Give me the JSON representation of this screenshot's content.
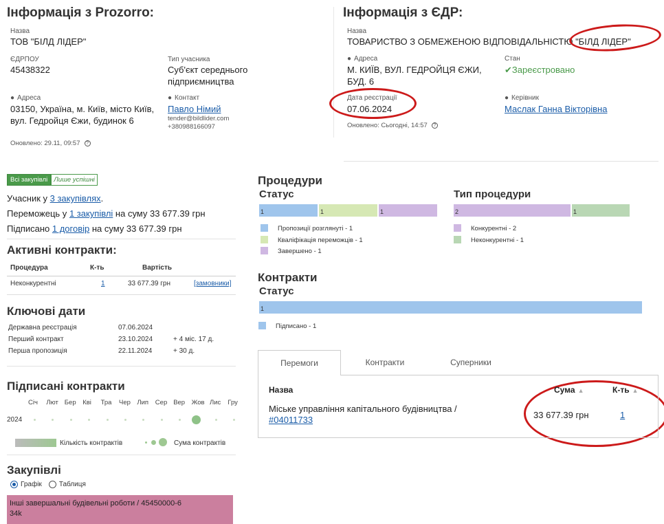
{
  "prozorro": {
    "title": "Інформація з Prozorro:",
    "name_label": "Назва",
    "name": "ТОВ \"БІЛД ЛІДЕР\"",
    "edrpou_label": "ЄДРПОУ",
    "edrpou": "45438322",
    "type_label": "Тип учасника",
    "type_line1": "Суб'єкт середнього",
    "type_line2": "підприємництва",
    "address_label": "Адреса",
    "address_line1": "03150, Україна, м. Київ, місто Київ,",
    "address_line2": "вул. Гедройця Єжи, будинок 6",
    "contact_label": "Контакт",
    "contact_name": "Павло Німий",
    "contact_email": "tender@bildlider.com",
    "contact_phone": "+380988166097",
    "updated": "Оновлено: 29.11, 09:57"
  },
  "edr": {
    "title": "Інформація з ЄДР:",
    "name_label": "Назва",
    "name": "ТОВАРИСТВО З ОБМЕЖЕНОЮ ВІДПОВІДАЛЬНІСТЮ \"БІЛД ЛІДЕР\"",
    "address_label": "Адреса",
    "address_line1": "М. КИЇВ, ВУЛ. ГЕДРОЙЦЯ ЄЖИ,",
    "address_line2": "БУД. 6",
    "state_label": "Стан",
    "state": "Зареєстровано",
    "reg_date_label": "Дата реєстрації",
    "reg_date": "07.06.2024",
    "head_label": "Керівник",
    "head": "Маслак Ганна Вікторівна",
    "updated": "Оновлено: Сьогодні, 14:57"
  },
  "filter": {
    "all": "Всі закупівлі",
    "successful": "Лише успішні"
  },
  "summary": {
    "participant_prefix": "Учасник у ",
    "participant_link": "3 закупівлях",
    "participant_suffix": ".",
    "winner_prefix": "Переможець у ",
    "winner_link": "1 закупівлі",
    "winner_suffix": " на суму 33 677.39 грн",
    "signed_prefix": "Підписано ",
    "signed_link": "1 договір",
    "signed_suffix": " на суму 33 677.39 грн"
  },
  "active_contracts": {
    "title": "Активні контракти:",
    "headers": [
      "Процедура",
      "К-ть",
      "Вартість"
    ],
    "row": {
      "procedure": "Неконкурентні",
      "count": "1",
      "value": "33 677.39 грн",
      "link": "[замовники]"
    }
  },
  "key_dates": {
    "title": "Ключові дати",
    "rows": [
      {
        "label": "Державна реєстрація",
        "date": "07.06.2024",
        "delta": ""
      },
      {
        "label": "Перший контракт",
        "date": "23.10.2024",
        "delta": "+ 4 міс. 17 д."
      },
      {
        "label": "Перша пропозиція",
        "date": "22.11.2024",
        "delta": "+ 30 д."
      }
    ]
  },
  "signed_contracts": {
    "title": "Підписані контракти",
    "months": [
      "Січ",
      "Лют",
      "Бер",
      "Кві",
      "Тра",
      "Чер",
      "Лип",
      "Сер",
      "Вер",
      "Жов",
      "Лис",
      "Гру"
    ],
    "year": "2024",
    "legend_count": "Кількість контрактів",
    "legend_sum": "Сума контрактів"
  },
  "purchases": {
    "title": "Закупівлі",
    "radio_chart": "Графік",
    "radio_table": "Таблиця",
    "block_line1": "Інші завершальні будівельні роботи / 45450000-6",
    "block_line2": "34k"
  },
  "procedures": {
    "title": "Процедури",
    "status_title": "Статус",
    "type_title": "Тип процедури",
    "status_legend": [
      "Пропозиції розглянуті - 1",
      "Кваліфікація переможців - 1",
      "Завершено - 1"
    ],
    "type_legend": [
      "Конкурентні - 2",
      "Неконкурентні - 1"
    ],
    "status_values": [
      1,
      1,
      1
    ],
    "type_values": [
      2,
      1
    ],
    "colors": {
      "blue": "#9fc5ec",
      "lime": "#d6e8b4",
      "purple": "#cfb8e2",
      "green": "#b9d7b4"
    }
  },
  "contracts": {
    "title": "Контракти",
    "status_title": "Статус",
    "bar_value": "1",
    "legend": "Підписано - 1"
  },
  "tabs": {
    "items": [
      "Перемоги",
      "Контракти",
      "Суперники"
    ],
    "headers": {
      "name": "Назва",
      "sum": "Сума",
      "count": "К-ть"
    },
    "row": {
      "name_line1": "Міське управління капітального будівництва /",
      "name_link": "#04011733",
      "sum": "33 677.39 грн",
      "count": "1"
    }
  }
}
